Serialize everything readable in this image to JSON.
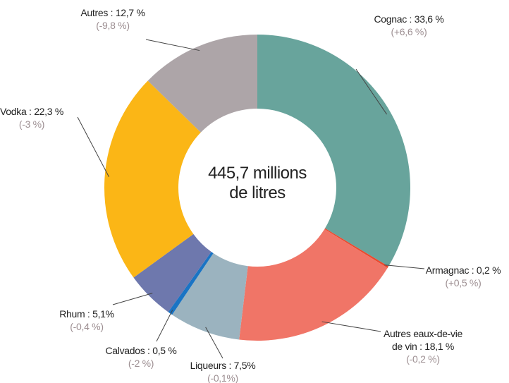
{
  "chart_data": {
    "type": "donut",
    "center_label": "445,7 millions\nde litres",
    "values": [
      33.6,
      0.2,
      18.1,
      7.5,
      0.5,
      5.1,
      22.3,
      12.7
    ],
    "value_labels": [
      "Cognac : 33,6 %",
      "Armagnac : 0,2 %",
      "Autres eaux-de-vie\nde vin : 18,1 %",
      "Liqueurs : 7,5%",
      "Calvados : 0,5 %",
      "Rhum : 5,1%",
      "Vodka : 22,3 %",
      "Autres : 12,7 %"
    ],
    "changes": [
      "(+6,6 %)",
      "(+0,5 %)",
      "(-0,2 %)",
      "(-0,1%)",
      "(-2 %)",
      "(-0,4 %)",
      "(-3 %)",
      "(-9,8 %)"
    ],
    "colors": [
      "#68a49c",
      "#e84a2f",
      "#f07567",
      "#9bb3bf",
      "#1a74c4",
      "#6e78ad",
      "#fbb616",
      "#ada5a8"
    ]
  }
}
